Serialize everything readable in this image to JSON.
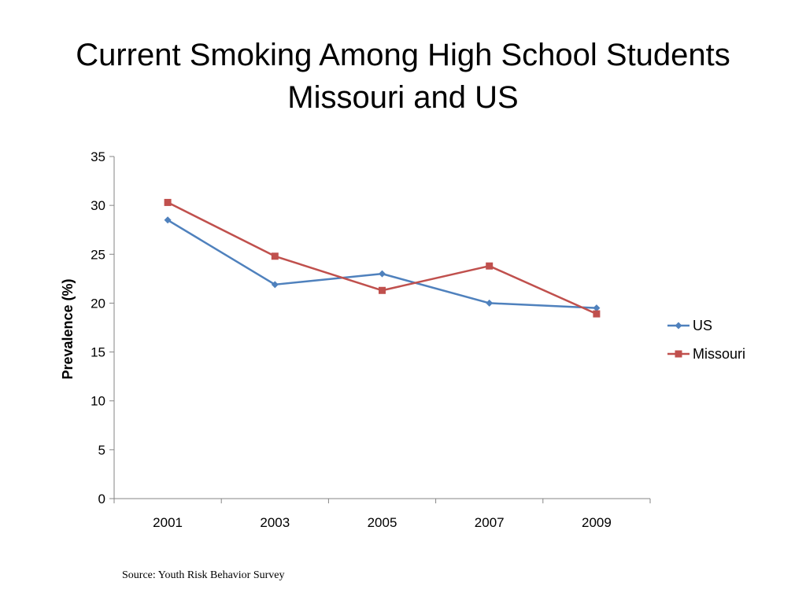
{
  "slide": {
    "title_line1": "Current Smoking Among High School Students",
    "title_line2": "Missouri and US",
    "source": "Source: Youth Risk Behavior Survey"
  },
  "chart_data": {
    "type": "line",
    "title": "",
    "xlabel": "",
    "ylabel": "Prevalence (%)",
    "categories": [
      "2001",
      "2003",
      "2005",
      "2007",
      "2009"
    ],
    "ylim": [
      0,
      35
    ],
    "yticks": [
      0,
      5,
      10,
      15,
      20,
      25,
      30,
      35
    ],
    "grid": false,
    "legend_position": "right",
    "series": [
      {
        "name": "US",
        "values": [
          28.5,
          21.9,
          23.0,
          20.0,
          19.5
        ],
        "color": "#4F81BD",
        "marker": "diamond"
      },
      {
        "name": "Missouri",
        "values": [
          30.3,
          24.8,
          21.3,
          23.8,
          18.9
        ],
        "color": "#C0504D",
        "marker": "square"
      }
    ]
  }
}
